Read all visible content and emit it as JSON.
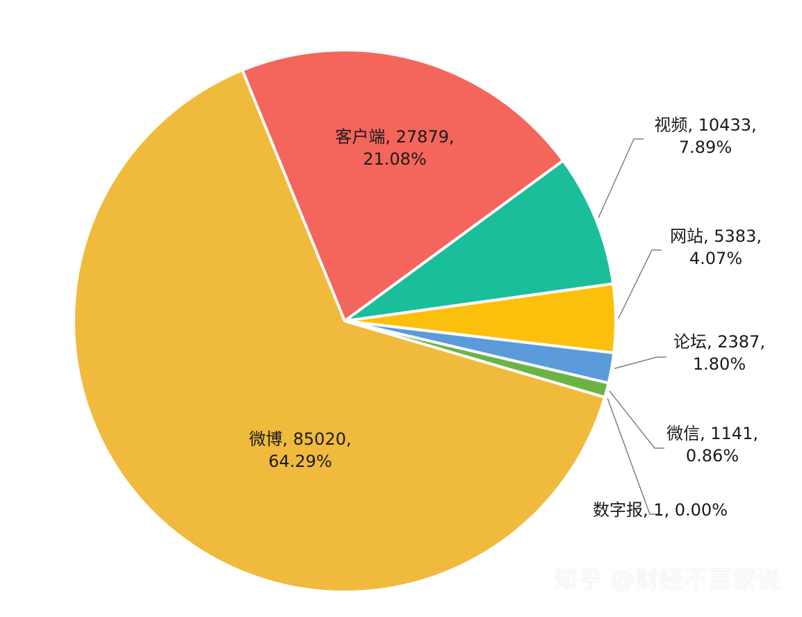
{
  "chart_data": {
    "type": "pie",
    "title": "",
    "start_angle_deg": -112.2,
    "direction": "clockwise",
    "slices": [
      {
        "label": "客户端",
        "value": 27879,
        "percent": "21.08%",
        "color": "#F4655C",
        "label_line1": "客户端, 27879,",
        "label_line2": "21.08%",
        "label_mode": "inside"
      },
      {
        "label": "视频",
        "value": 10433,
        "percent": "7.89%",
        "color": "#1BBE9A",
        "label_line1": "视频, 10433,",
        "label_line2": "7.89%",
        "label_mode": "outside"
      },
      {
        "label": "网站",
        "value": 5383,
        "percent": "4.07%",
        "color": "#FBC00C",
        "label_line1": "网站, 5383,",
        "label_line2": "4.07%",
        "label_mode": "outside"
      },
      {
        "label": "论坛",
        "value": 2387,
        "percent": "1.80%",
        "color": "#5B9BD9",
        "label_line1": "论坛, 2387,",
        "label_line2": "1.80%",
        "label_mode": "outside"
      },
      {
        "label": "微信",
        "value": 1141,
        "percent": "0.86%",
        "color": "#6CB345",
        "label_line1": "微信, 1141,",
        "label_line2": "0.86%",
        "label_mode": "outside"
      },
      {
        "label": "数字报",
        "value": 1,
        "percent": "0.00%",
        "color": "#7F7F7F",
        "label_line1": "数字报, 1, 0.00%",
        "label_line2": "",
        "label_mode": "outside"
      },
      {
        "label": "微博",
        "value": 85020,
        "percent": "64.29%",
        "color": "#F0BA3C",
        "label_line1": "微博, 85020,",
        "label_line2": "64.29%",
        "label_mode": "inside"
      }
    ]
  },
  "watermark": "知乎 @财经不百家说"
}
